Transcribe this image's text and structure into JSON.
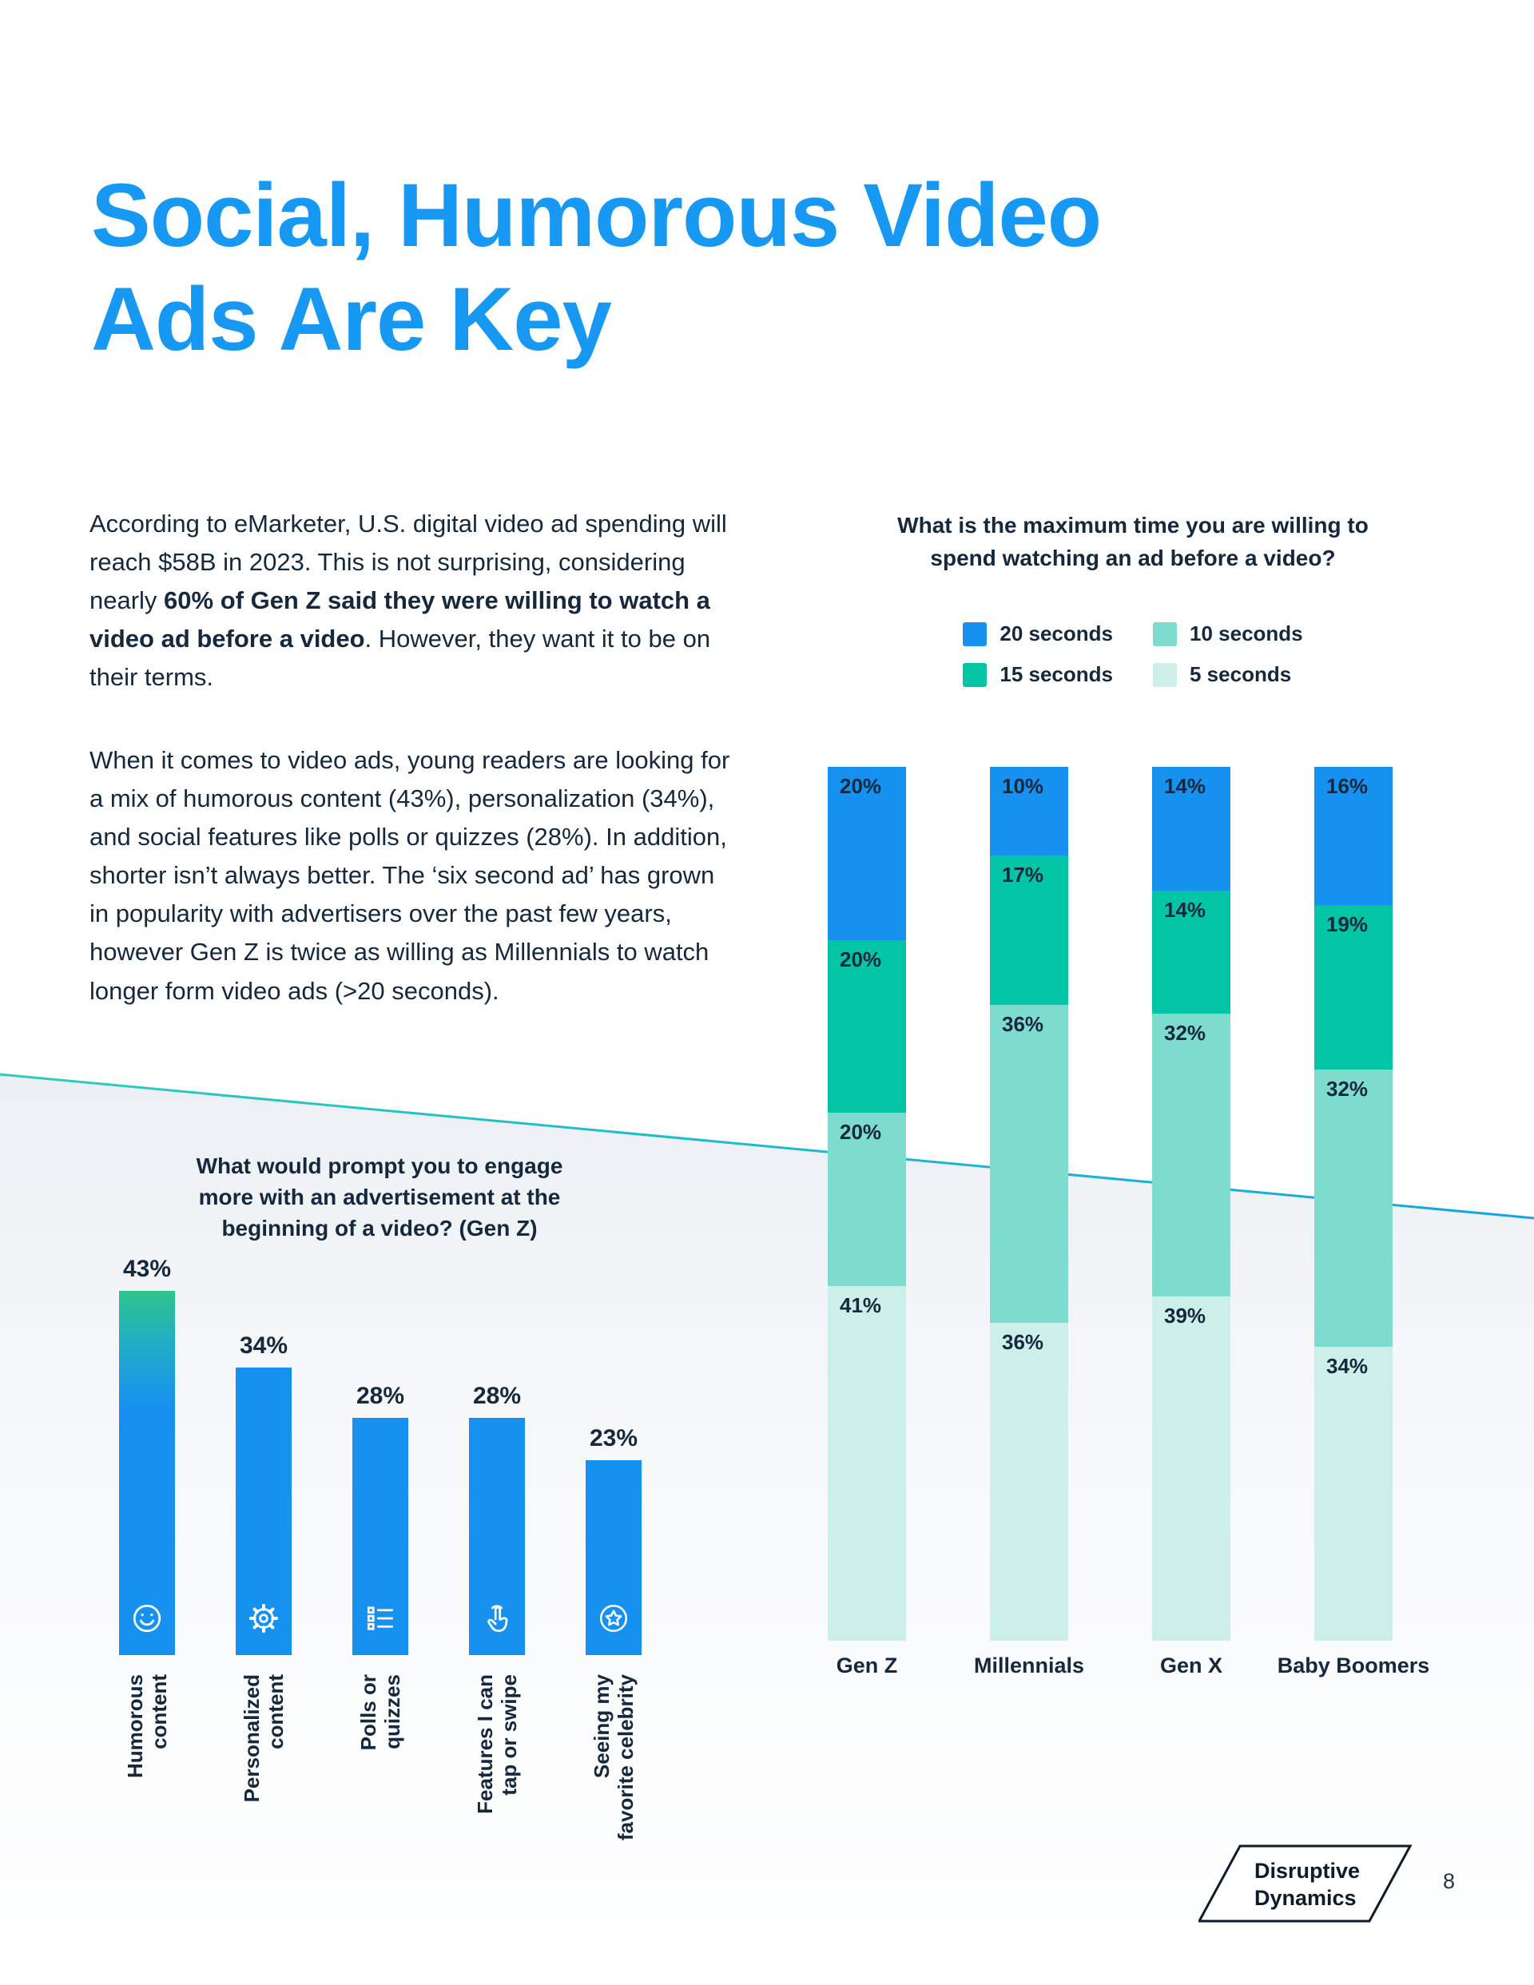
{
  "page": {
    "title_line1": "Social, Humorous Video",
    "title_line2": "Ads Are Key",
    "page_number": "8",
    "logo": {
      "line1": "Disruptive",
      "line2": "Dynamics"
    }
  },
  "intro": {
    "p1_pre": "According to eMarketer, U.S. digital video ad spending will reach $58B in 2023. This is not surprising, considering nearly ",
    "p1_bold": "60% of Gen Z said they were willing to watch a video ad before a video",
    "p1_post": ". However, they want it to be on their terms.",
    "p2": "When it comes to video ads, young readers are looking for a mix of humorous content (43%), personalization (34%), and social features like polls or quizzes (28%). In addition, shorter isn’t always better. The ‘six second ad’ has grown in popularity with advertisers over the past few years, however Gen Z is twice as willing as Millennials to watch longer form video ads (>20 seconds)."
  },
  "colors": {
    "accent_blue": "#1798f2",
    "text_navy": "#15283c",
    "bar_blue": "#1791f0",
    "bar_gradient_top": "#2fc48c",
    "teal_line_start": "#2ecdbb",
    "teal_line_end": "#12a7e0"
  },
  "chart_data": [
    {
      "type": "bar",
      "stacked": true,
      "title": "What is the maximum time you are willing to spend watching an ad before a video?",
      "categories": [
        "Gen Z",
        "Millennials",
        "Gen X",
        "Baby Boomers"
      ],
      "series": [
        {
          "name": "20 seconds",
          "color": "#1791f0",
          "values": [
            20,
            10,
            14,
            16
          ]
        },
        {
          "name": "15 seconds",
          "color": "#02c5a5",
          "values": [
            20,
            17,
            14,
            19
          ]
        },
        {
          "name": "10 seconds",
          "color": "#7edcce",
          "values": [
            20,
            36,
            32,
            32
          ]
        },
        {
          "name": "5 seconds",
          "color": "#cdefea",
          "values": [
            41,
            36,
            39,
            34
          ]
        }
      ],
      "value_suffix": "%",
      "legend_position": "top",
      "legend_order": [
        0,
        2,
        1,
        3
      ]
    },
    {
      "type": "bar",
      "title": "What would prompt you to engage more with an advertisement at the beginning of a video? (Gen Z)",
      "categories": [
        "Humorous\ncontent",
        "Personalized\ncontent",
        "Polls or\nquizzes",
        "Features I can\ntap or swipe",
        "Seeing my\nfavorite celebrity"
      ],
      "values": [
        43,
        34,
        28,
        28,
        23
      ],
      "value_suffix": "%",
      "bar_color": "#1791f0",
      "icons": [
        "smiley-icon",
        "gear-icon",
        "poll-list-icon",
        "tap-icon",
        "star-badge-icon"
      ],
      "ylim": [
        0,
        50
      ]
    }
  ]
}
